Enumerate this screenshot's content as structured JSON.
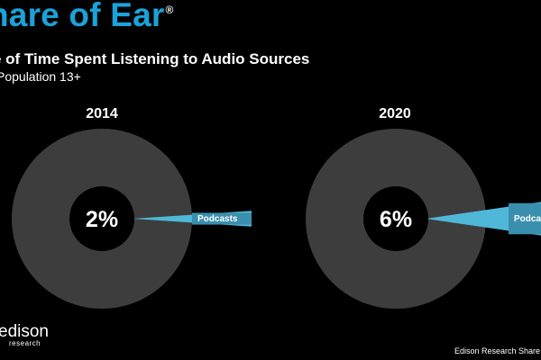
{
  "header": {
    "title": "hare of Ear",
    "title_mark": "®",
    "subtitle": "e of Time Spent Listening to Audio Sources",
    "base": "Population 13+"
  },
  "chart_data": [
    {
      "type": "pie",
      "title": "2014",
      "center_label": "2%",
      "slices": [
        {
          "label": "Podcasts",
          "value": 2,
          "color": "#4fb8d8"
        },
        {
          "label": "",
          "value": 98,
          "color": "#3d3d3d"
        }
      ]
    },
    {
      "type": "pie",
      "title": "2020",
      "center_label": "6%",
      "slices": [
        {
          "label": "Podcasts",
          "value": 6,
          "color": "#4fb8d8"
        },
        {
          "label": "",
          "value": 94,
          "color": "#3d3d3d"
        }
      ]
    }
  ],
  "logo": {
    "name": "edison",
    "sub": "research"
  },
  "footer": "Edison Research Share of"
}
